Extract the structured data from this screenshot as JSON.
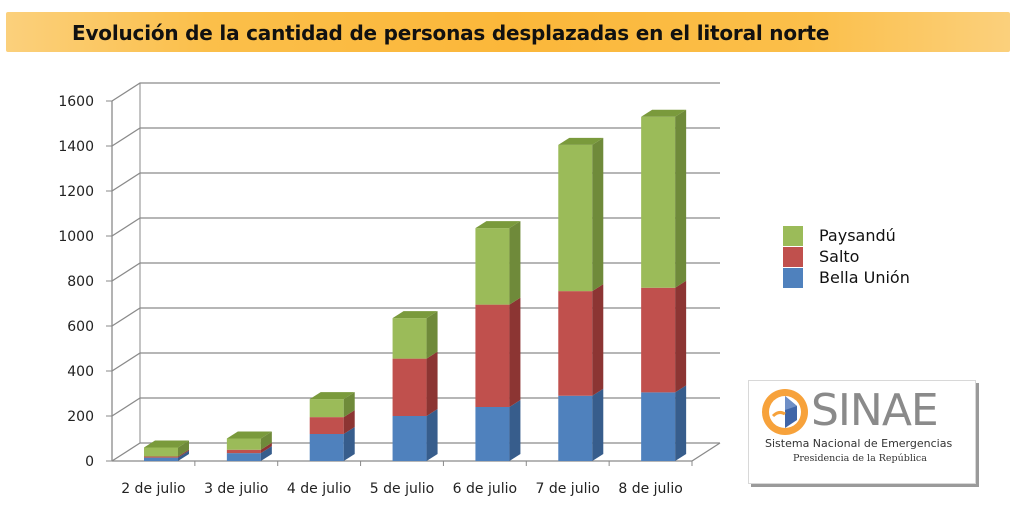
{
  "title": "Evolución de la cantidad de personas desplazadas en el litoral norte",
  "chart_data": {
    "type": "bar",
    "stacked": true,
    "title": "Evolución de la cantidad de personas desplazadas en el litoral norte",
    "categories": [
      "2 de julio",
      "3 de julio",
      "4 de julio",
      "5 de julio",
      "6 de julio",
      "7 de julio",
      "8 de julio"
    ],
    "series": [
      {
        "name": "Bella Unión",
        "values": [
          15,
          35,
          120,
          200,
          240,
          290,
          305
        ]
      },
      {
        "name": "Salto",
        "values": [
          5,
          15,
          75,
          255,
          455,
          465,
          465
        ]
      },
      {
        "name": "Paysandú",
        "values": [
          40,
          50,
          80,
          180,
          340,
          650,
          760
        ]
      }
    ],
    "ylim": [
      0,
      1600
    ],
    "yticks": [
      0,
      200,
      400,
      600,
      800,
      1000,
      1200,
      1400,
      1600
    ],
    "xlabel": "",
    "ylabel": "",
    "grid": true,
    "legend_position": "right",
    "colors": {
      "Bella Unión": {
        "front": "#4f81bd",
        "side": "#375d8c",
        "top": "#3b639a"
      },
      "Salto": {
        "front": "#c0504d",
        "side": "#8c3533",
        "top": "#963b39"
      },
      "Paysandú": {
        "front": "#9bbb59",
        "side": "#6f8a3a",
        "top": "#7a9a3c"
      }
    }
  },
  "legend": [
    {
      "label": "Paysandú",
      "color": "#9bbb59"
    },
    {
      "label": "Salto",
      "color": "#c0504d"
    },
    {
      "label": "Bella Unión",
      "color": "#4f81bd"
    }
  ],
  "logo": {
    "name": "SINAE",
    "line1": "Sistema Nacional de Emergencias",
    "line2": "Presidencia de la República"
  }
}
